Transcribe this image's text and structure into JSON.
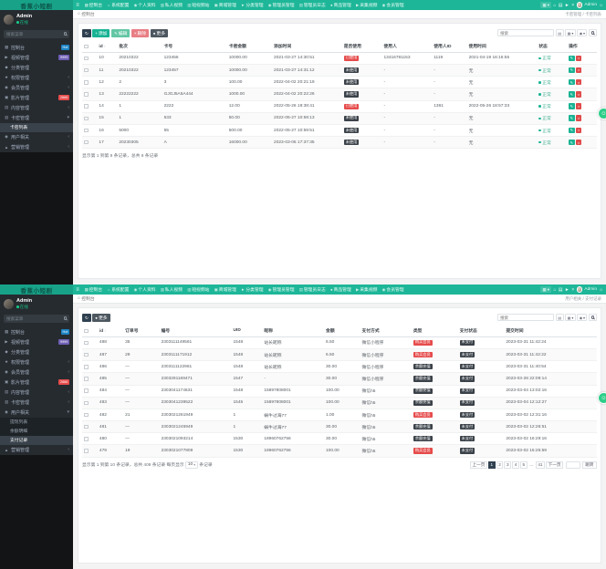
{
  "icons": {
    "menu": "≡",
    "home": "⌂",
    "dashboard": "▦",
    "gear": "☼",
    "profile": "◉",
    "chart": "▥",
    "shop": "▣",
    "plane": "►",
    "doc": "▤",
    "paw": "●",
    "collect": "▶",
    "member": "◉",
    "grid": "▦",
    "caret_down": "▾",
    "caret_left": "‹",
    "close": "×",
    "refresh": "↻",
    "plus": "+",
    "edit": "✎",
    "trash": "×",
    "dot": "●",
    "send": "►",
    "support": "☺",
    "sort": "↕",
    "video": "▶",
    "category": "◆",
    "permission": "★",
    "users": "◉",
    "film": "▣",
    "content": "▤",
    "card": "▥",
    "user": "◉",
    "marketing": "▲"
  },
  "navbar": {
    "brand": "香蕉小短剧",
    "user": "Admin",
    "items": [
      {
        "label": "控制台",
        "icon": "dashboard"
      },
      {
        "label": "系统配置",
        "icon": "gear"
      },
      {
        "label": "个人资料",
        "icon": "profile"
      },
      {
        "label": "私人视频",
        "icon": "chart"
      },
      {
        "label": "短视频站",
        "icon": "chart"
      },
      {
        "label": "商城管理",
        "icon": "shop"
      },
      {
        "label": "分类管理",
        "icon": "plane"
      },
      {
        "label": "管理员管理",
        "icon": "profile"
      },
      {
        "label": "管理员日志",
        "icon": "doc"
      },
      {
        "label": "商品管理",
        "icon": "paw"
      },
      {
        "label": "采集视频",
        "icon": "collect"
      },
      {
        "label": "会员管理",
        "icon": "member"
      }
    ]
  },
  "sidebar": {
    "user_name": "Admin",
    "user_status": "在线",
    "search_placeholder": "搜索菜单"
  },
  "screens": [
    {
      "crumb_left": "控制台",
      "crumb_right": "卡密管理 / 卡密列表",
      "search_placeholder": "搜索",
      "menus": [
        {
          "label": "控制台",
          "icon": "dashboard",
          "badge": {
            "text": "Hot",
            "color": "#1c84c6"
          }
        },
        {
          "label": "视频管理",
          "icon": "video",
          "badge": {
            "text": "9999",
            "color": "#6f5fb5"
          }
        },
        {
          "label": "分类管理",
          "icon": "category"
        },
        {
          "label": "权限管理",
          "icon": "permission",
          "caret": "closed"
        },
        {
          "label": "会员管理",
          "icon": "users",
          "caret": "closed"
        },
        {
          "label": "影片管理",
          "icon": "film",
          "badge": {
            "text": "2666",
            "color": "#e64b4b"
          }
        },
        {
          "label": "内容管理",
          "icon": "content",
          "caret": "closed"
        },
        {
          "label": "卡密管理",
          "icon": "card",
          "caret": "open",
          "children": [
            {
              "label": "卡密列表",
              "active": true
            }
          ]
        },
        {
          "label": "用户相关",
          "icon": "user",
          "caret": "closed"
        },
        {
          "label": "营销管理",
          "icon": "marketing",
          "caret": "closed"
        }
      ],
      "toolbar": [
        {
          "name": "refresh-button",
          "icon": "refresh",
          "label": "",
          "style": "btn-dark"
        },
        {
          "name": "add-button",
          "icon": "plus",
          "label": "添加",
          "style": "btn-green"
        },
        {
          "name": "edit-button",
          "icon": "edit",
          "label": "编辑",
          "style": "btn-lightgreen"
        },
        {
          "name": "delete-button",
          "icon": "trash",
          "label": "删除",
          "style": "btn-red"
        },
        {
          "name": "more-button",
          "icon": "dot",
          "label": "更多",
          "style": "btn-slate"
        }
      ],
      "table": {
        "columns": [
          "id",
          "批次",
          "卡号",
          "卡密金额",
          "添加时间",
          "是否使用",
          "使用人",
          "使用人ID",
          "使用时间",
          "状态",
          "操作"
        ],
        "widths": [
          4,
          9,
          13,
          9,
          14,
          8,
          10,
          7,
          14,
          6,
          6
        ],
        "rows": [
          [
            "10",
            "20210322",
            "123456",
            "10000.00",
            "2021-03-27 14:30:51",
            {
              "badge": "已使用",
              "style": "red"
            },
            "13416781153",
            "1119",
            "2021-04-19 16:16:55",
            {
              "status": "正常"
            },
            {
              "ops": true
            }
          ],
          [
            "11",
            "20210322",
            "123457",
            "10000.00",
            "2021-03-27 14:31:12",
            {
              "badge": "未使用",
              "style": "dark"
            },
            "-",
            "-",
            "无",
            {
              "status": "正常"
            },
            {
              "ops": true
            }
          ],
          [
            "12",
            "2",
            "3",
            "100.00",
            "2022-04-02 20:21:19",
            {
              "badge": "未使用",
              "style": "dark"
            },
            "-",
            "-",
            "无",
            {
              "status": "正常"
            },
            {
              "ops": true
            }
          ],
          [
            "13",
            "22222222",
            "GJGJ5A5A444",
            "1000.00",
            "2022-04-02 20:22:26",
            {
              "badge": "未使用",
              "style": "dark"
            },
            "-",
            "-",
            "无",
            {
              "status": "正常"
            },
            {
              "ops": true
            }
          ],
          [
            "14",
            "1",
            "2222",
            "12.00",
            "2022-05-26 18:38:41",
            {
              "badge": "已使用",
              "style": "red"
            },
            "-",
            "1361",
            "2022-05-26 18:57:33",
            {
              "status": "正常"
            },
            {
              "ops": true
            }
          ],
          [
            "15",
            "1",
            "533",
            "50.00",
            "2022-05-27 10:59:13",
            {
              "badge": "未使用",
              "style": "dark"
            },
            "-",
            "-",
            "无",
            {
              "status": "正常"
            },
            {
              "ops": true
            }
          ],
          [
            "16",
            "5000",
            "55",
            "500.00",
            "2022-05-27 10:59:51",
            {
              "badge": "未使用",
              "style": "dark"
            },
            "-",
            "-",
            "无",
            {
              "status": "正常"
            },
            {
              "ops": true
            }
          ],
          [
            "17",
            "20230305",
            "A",
            "16000.00",
            "2023-03-05 17:37:35",
            {
              "badge": "未使用",
              "style": "dark"
            },
            "-",
            "-",
            "无",
            {
              "status": "正常"
            },
            {
              "ops": true
            }
          ]
        ]
      },
      "footer": "显示第 1 到第 8 条记录，总共 8 条记录"
    },
    {
      "crumb_left": "控制台",
      "crumb_right": "用户相关 / 支付记录",
      "search_placeholder": "搜索",
      "menus": [
        {
          "label": "控制台",
          "icon": "dashboard",
          "badge": {
            "text": "Hot",
            "color": "#1c84c6"
          }
        },
        {
          "label": "视频管理",
          "icon": "video",
          "badge": {
            "text": "9999",
            "color": "#6f5fb5"
          }
        },
        {
          "label": "分类管理",
          "icon": "category"
        },
        {
          "label": "权限管理",
          "icon": "permission",
          "caret": "closed"
        },
        {
          "label": "会员管理",
          "icon": "users",
          "caret": "closed"
        },
        {
          "label": "影片管理",
          "icon": "film",
          "badge": {
            "text": "2666",
            "color": "#e64b4b"
          }
        },
        {
          "label": "内容管理",
          "icon": "content",
          "caret": "closed"
        },
        {
          "label": "卡密管理",
          "icon": "card",
          "caret": "closed"
        },
        {
          "label": "用户相关",
          "icon": "user",
          "caret": "open",
          "children": [
            {
              "label": "提现列表",
              "active": false
            },
            {
              "label": "余额明细",
              "active": false
            },
            {
              "label": "支付记录",
              "active": true
            }
          ]
        },
        {
          "label": "营销管理",
          "icon": "marketing",
          "caret": "closed"
        }
      ],
      "toolbar": [
        {
          "name": "refresh-button",
          "icon": "refresh",
          "label": "",
          "style": "btn-dark"
        },
        {
          "name": "more-button",
          "icon": "dot",
          "label": "更多",
          "style": "btn-slate"
        }
      ],
      "table": {
        "columns": [
          "id",
          "订单号",
          "编号",
          "UID",
          "昵称",
          "金额",
          "支付方式",
          "类型",
          "支付状态",
          "提交时间"
        ],
        "widths": [
          5,
          7,
          14,
          6,
          12,
          7,
          10,
          9,
          9,
          18
        ],
        "rows": [
          [
            "488",
            "35",
            "2303111149561",
            "1548",
            "站长昵称",
            "6.50",
            "微信小程序",
            {
              "badge": "购买会员",
              "style": "red"
            },
            {
              "badge": "未支付",
              "style": "dark"
            },
            "2023-03-31 11:42:24"
          ],
          [
            "487",
            "29",
            "2303111171912",
            "1548",
            "站长昵称",
            "6.50",
            "微信小程序",
            {
              "badge": "购买会员",
              "style": "red"
            },
            {
              "badge": "未支付",
              "style": "dark"
            },
            "2023-03-31 11:42:22"
          ],
          [
            "486",
            "—",
            "2303111122961",
            "1548",
            "站长昵称",
            "30.00",
            "微信小程序",
            {
              "badge": "余额充值",
              "style": "dark"
            },
            {
              "badge": "未支付",
              "style": "dark"
            },
            "2023-03-31 11:40:54"
          ],
          [
            "485",
            "—",
            "2303291169471",
            "1547",
            "-",
            "30.00",
            "微信小程序",
            {
              "badge": "余额充值",
              "style": "dark"
            },
            {
              "badge": "未支付",
              "style": "dark"
            },
            "2023-03-28 22:09:14"
          ],
          [
            "484",
            "—",
            "2303041174631",
            "1548",
            "15897808001",
            "100.00",
            "微信h5",
            {
              "badge": "余额充值",
              "style": "dark"
            },
            {
              "badge": "未支付",
              "style": "dark"
            },
            "2023-03-04 13:02:16"
          ],
          [
            "483",
            "—",
            "2303041239522",
            "1545",
            "15897808001",
            "100.00",
            "微信h5",
            {
              "badge": "余额充值",
              "style": "dark"
            },
            {
              "badge": "未支付",
              "style": "dark"
            },
            "2023-03-04 12:12:27"
          ],
          [
            "482",
            "21",
            "2303021261949",
            "1",
            "蜗牛过海77",
            "1.00",
            "微信h5",
            {
              "badge": "购买会员",
              "style": "red"
            },
            {
              "badge": "未支付",
              "style": "dark"
            },
            "2023-03-02 12:31:16"
          ],
          [
            "481",
            "—",
            "2303021245949",
            "1",
            "蜗牛过海77",
            "30.00",
            "微信h5",
            {
              "badge": "余额充值",
              "style": "dark"
            },
            {
              "badge": "未支付",
              "style": "dark"
            },
            "2023-03-02 12:26:51"
          ],
          [
            "480",
            "—",
            "2303021093214",
            "1530",
            "18960762756",
            "30.00",
            "微信h5",
            {
              "badge": "余额充值",
              "style": "dark"
            },
            {
              "badge": "未支付",
              "style": "dark"
            },
            "2023-03-02 16:29:16"
          ],
          [
            "479",
            "19",
            "2303021077809",
            "1530",
            "18960762756",
            "100.00",
            "微信h5",
            {
              "badge": "购买会员",
              "style": "red"
            },
            {
              "badge": "未支付",
              "style": "dark"
            },
            "2023-03-02 16:25:59"
          ]
        ]
      },
      "footer2": {
        "text": "显示第 1 到第 10 条记录，总共 408 条记录 每页显示",
        "page_size": "10",
        "suffix": "条记录"
      },
      "pager": {
        "pages": [
          "上一页",
          "1",
          "2",
          "3",
          "4",
          "5",
          "...",
          "41",
          "下一页"
        ],
        "active": "1",
        "jump_label": "跳转"
      }
    }
  ]
}
